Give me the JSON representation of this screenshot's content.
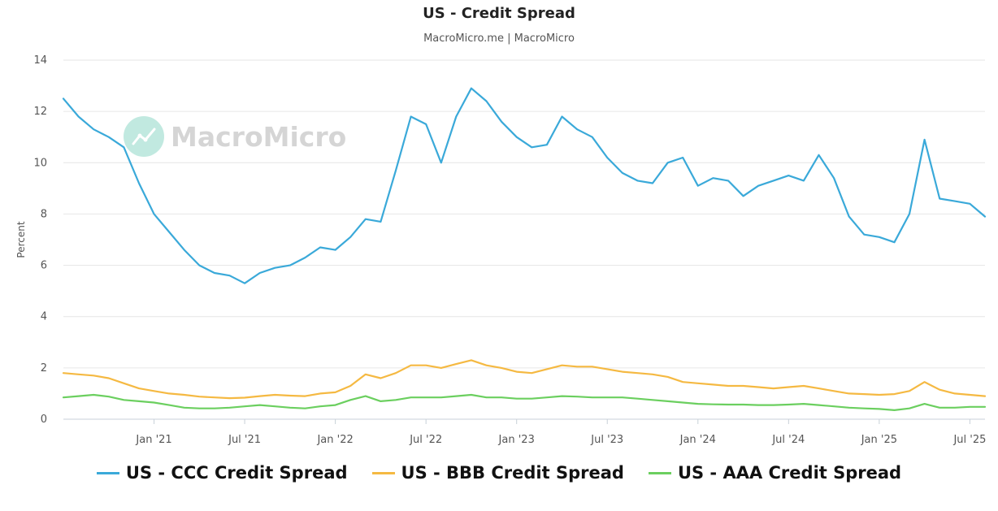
{
  "chart_data": {
    "type": "line",
    "title": "US - Credit Spread",
    "subtitle": "MacroMicro.me | MacroMicro",
    "watermark": "MacroMicro",
    "xlabel": "",
    "ylabel": "Percent",
    "ylim": [
      0,
      14
    ],
    "yticks": [
      0,
      2,
      4,
      6,
      8,
      10,
      12,
      14
    ],
    "xlim": [
      "2020-07",
      "2025-08"
    ],
    "xticks": [
      {
        "label": "Jan '21",
        "date": "2021-01"
      },
      {
        "label": "Jul '21",
        "date": "2021-07"
      },
      {
        "label": "Jan '22",
        "date": "2022-01"
      },
      {
        "label": "Jul '22",
        "date": "2022-07"
      },
      {
        "label": "Jan '23",
        "date": "2023-01"
      },
      {
        "label": "Jul '23",
        "date": "2023-07"
      },
      {
        "label": "Jan '24",
        "date": "2024-01"
      },
      {
        "label": "Jul '24",
        "date": "2024-07"
      },
      {
        "label": "Jan '25",
        "date": "2025-01"
      },
      {
        "label": "Jul '25",
        "date": "2025-07"
      }
    ],
    "grid": true,
    "legend_position": "bottom",
    "x": [
      "2020-07",
      "2020-08",
      "2020-09",
      "2020-10",
      "2020-11",
      "2020-12",
      "2021-01",
      "2021-02",
      "2021-03",
      "2021-04",
      "2021-05",
      "2021-06",
      "2021-07",
      "2021-08",
      "2021-09",
      "2021-10",
      "2021-11",
      "2021-12",
      "2022-01",
      "2022-02",
      "2022-03",
      "2022-04",
      "2022-05",
      "2022-06",
      "2022-07",
      "2022-08",
      "2022-09",
      "2022-10",
      "2022-11",
      "2022-12",
      "2023-01",
      "2023-02",
      "2023-03",
      "2023-04",
      "2023-05",
      "2023-06",
      "2023-07",
      "2023-08",
      "2023-09",
      "2023-10",
      "2023-11",
      "2023-12",
      "2024-01",
      "2024-02",
      "2024-03",
      "2024-04",
      "2024-05",
      "2024-06",
      "2024-07",
      "2024-08",
      "2024-09",
      "2024-10",
      "2024-11",
      "2024-12",
      "2025-01",
      "2025-02",
      "2025-03",
      "2025-04",
      "2025-05",
      "2025-06",
      "2025-07",
      "2025-08"
    ],
    "series": [
      {
        "name": "US - CCC Credit Spread",
        "color": "#3aa9d9",
        "values": [
          12.5,
          11.8,
          11.3,
          11.0,
          10.6,
          9.2,
          8.0,
          7.3,
          6.6,
          6.0,
          5.7,
          5.6,
          5.3,
          5.7,
          5.9,
          6.0,
          6.3,
          6.7,
          6.6,
          7.1,
          7.8,
          7.7,
          9.7,
          11.8,
          11.5,
          10.0,
          11.8,
          12.9,
          12.4,
          11.6,
          11.0,
          10.6,
          10.7,
          11.8,
          11.3,
          11.0,
          10.2,
          9.6,
          9.3,
          9.2,
          10.0,
          10.2,
          9.1,
          9.4,
          9.3,
          8.7,
          9.1,
          9.3,
          9.5,
          9.3,
          10.3,
          9.4,
          7.9,
          7.2,
          7.1,
          6.9,
          8.0,
          10.9,
          8.6,
          8.5,
          8.4,
          7.9
        ]
      },
      {
        "name": "US - BBB Credit Spread",
        "color": "#f5b942",
        "values": [
          1.8,
          1.75,
          1.7,
          1.6,
          1.4,
          1.2,
          1.1,
          1.0,
          0.95,
          0.88,
          0.85,
          0.82,
          0.84,
          0.9,
          0.95,
          0.92,
          0.9,
          1.0,
          1.05,
          1.3,
          1.75,
          1.6,
          1.8,
          2.1,
          2.1,
          2.0,
          2.15,
          2.3,
          2.1,
          2.0,
          1.85,
          1.8,
          1.95,
          2.1,
          2.05,
          2.05,
          1.95,
          1.85,
          1.8,
          1.75,
          1.65,
          1.45,
          1.4,
          1.35,
          1.3,
          1.3,
          1.25,
          1.2,
          1.25,
          1.3,
          1.2,
          1.1,
          1.0,
          0.98,
          0.95,
          0.98,
          1.1,
          1.45,
          1.15,
          1.0,
          0.95,
          0.9
        ]
      },
      {
        "name": "US - AAA Credit Spread",
        "color": "#6bcf5f",
        "values": [
          0.85,
          0.9,
          0.95,
          0.88,
          0.75,
          0.7,
          0.65,
          0.55,
          0.45,
          0.42,
          0.42,
          0.45,
          0.5,
          0.55,
          0.5,
          0.45,
          0.42,
          0.5,
          0.55,
          0.75,
          0.9,
          0.7,
          0.75,
          0.85,
          0.85,
          0.85,
          0.9,
          0.95,
          0.85,
          0.85,
          0.8,
          0.8,
          0.85,
          0.9,
          0.88,
          0.85,
          0.85,
          0.85,
          0.8,
          0.75,
          0.7,
          0.65,
          0.6,
          0.58,
          0.57,
          0.57,
          0.55,
          0.55,
          0.57,
          0.6,
          0.55,
          0.5,
          0.45,
          0.42,
          0.4,
          0.35,
          0.42,
          0.6,
          0.45,
          0.45,
          0.48,
          0.48
        ]
      }
    ]
  }
}
